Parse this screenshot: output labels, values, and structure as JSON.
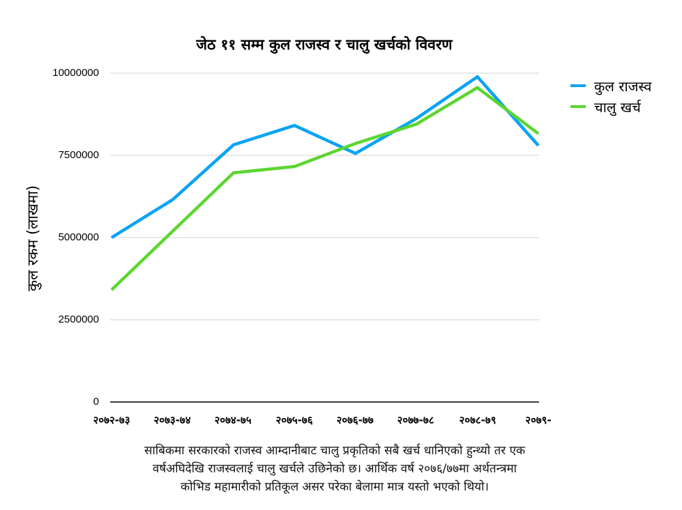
{
  "chart_data": {
    "type": "line",
    "title": "जेठ ११ सम्म कुल राजस्व र चालु खर्चको विवरण",
    "xlabel": "",
    "ylabel": "कुल रकम (लाखमा)",
    "categories": [
      "२०७२-७३",
      "२०७३-७४",
      "२०७४-७५",
      "२०७५-७६",
      "२०७६-७७",
      "२०७७-७८",
      "२०७८-७९",
      "२०७९-"
    ],
    "series": [
      {
        "name": "कुल राजस्व",
        "color": "#0AA3F5",
        "values": [
          5000000,
          6150000,
          7820000,
          8410000,
          7560000,
          8620000,
          9890000,
          7800000
        ]
      },
      {
        "name": "चालु खर्च",
        "color": "#5CD631",
        "values": [
          3410000,
          5190000,
          6970000,
          7160000,
          7860000,
          8450000,
          9560000,
          8160000
        ]
      }
    ],
    "ylim": [
      0,
      10000000
    ],
    "yticks": [
      0,
      2500000,
      5000000,
      7500000,
      10000000
    ],
    "ytick_labels": [
      "0",
      "2500000",
      "5000000",
      "7500000",
      "10000000"
    ],
    "grid": true,
    "legend_position": "right"
  },
  "caption": {
    "lines": [
      "साबिकमा सरकारको राजस्व आम्दानीबाट चालु प्रकृतिको सबै खर्च धानिएको हुन्थ्यो तर एक",
      "वर्षअघिदेखि राजस्वलाई चालु खर्चले उछिनेको छ। आर्थिक वर्ष २०७६/७७मा अर्थतन्त्रमा",
      "कोभिड महामारीको प्रतिकूल असर परेका बेलामा मात्र यस्तो भएको थियो।"
    ]
  }
}
